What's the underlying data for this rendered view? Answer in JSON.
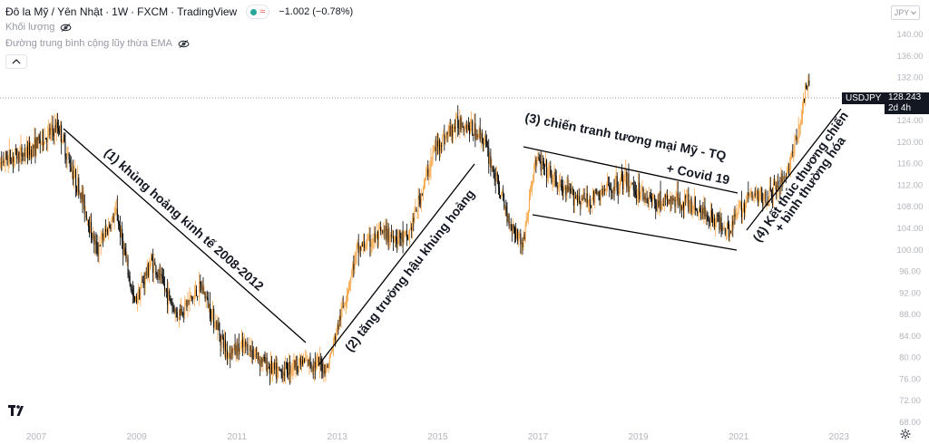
{
  "header": {
    "symbol": "Đô la Mỹ / Yên Nhật",
    "interval": "1W",
    "exchange": "FXCM",
    "source": "TradingView",
    "change": "−1.002 (−0.78%)"
  },
  "indicators": [
    "Khối lượng",
    "Đường trung bình cộng lũy thừa EMA"
  ],
  "currency": "JPY",
  "ticker": "USDJPY",
  "price": "128.243",
  "countdown": "2d 4h",
  "colors": {
    "up": "#f7a546",
    "down": "#000000",
    "text": "#131722",
    "axis": "#b2b5be"
  },
  "chart_data": {
    "type": "candlestick",
    "x_ticks": [
      "2007",
      "2009",
      "2011",
      "2013",
      "2015",
      "2017",
      "2019",
      "2021",
      "2023"
    ],
    "y_ticks": [
      68,
      72,
      76,
      80,
      84,
      88,
      92,
      96,
      100,
      104,
      108,
      112,
      116,
      120,
      124,
      128,
      132,
      136,
      140
    ],
    "y_range": [
      66,
      144
    ],
    "series_path": [
      {
        "x": 2006.0,
        "y": 114
      },
      {
        "x": 2006.4,
        "y": 117
      },
      {
        "x": 2006.8,
        "y": 118
      },
      {
        "x": 2007.45,
        "y": 123
      },
      {
        "x": 2007.6,
        "y": 118
      },
      {
        "x": 2007.9,
        "y": 110
      },
      {
        "x": 2008.2,
        "y": 100
      },
      {
        "x": 2008.6,
        "y": 107
      },
      {
        "x": 2008.95,
        "y": 90
      },
      {
        "x": 2009.3,
        "y": 98
      },
      {
        "x": 2009.8,
        "y": 88
      },
      {
        "x": 2010.3,
        "y": 93
      },
      {
        "x": 2010.8,
        "y": 81
      },
      {
        "x": 2011.2,
        "y": 82
      },
      {
        "x": 2011.8,
        "y": 77
      },
      {
        "x": 2012.2,
        "y": 79
      },
      {
        "x": 2012.5,
        "y": 79
      },
      {
        "x": 2012.8,
        "y": 78
      },
      {
        "x": 2013.4,
        "y": 100
      },
      {
        "x": 2013.9,
        "y": 103
      },
      {
        "x": 2014.4,
        "y": 102
      },
      {
        "x": 2014.95,
        "y": 119
      },
      {
        "x": 2015.45,
        "y": 124
      },
      {
        "x": 2015.9,
        "y": 121
      },
      {
        "x": 2016.4,
        "y": 106
      },
      {
        "x": 2016.7,
        "y": 101
      },
      {
        "x": 2016.95,
        "y": 117
      },
      {
        "x": 2017.5,
        "y": 111
      },
      {
        "x": 2018.0,
        "y": 109
      },
      {
        "x": 2018.7,
        "y": 113
      },
      {
        "x": 2019.3,
        "y": 109
      },
      {
        "x": 2019.9,
        "y": 109
      },
      {
        "x": 2020.3,
        "y": 107
      },
      {
        "x": 2020.8,
        "y": 104
      },
      {
        "x": 2021.2,
        "y": 110
      },
      {
        "x": 2021.6,
        "y": 110
      },
      {
        "x": 2021.95,
        "y": 114
      },
      {
        "x": 2022.2,
        "y": 122
      },
      {
        "x": 2022.35,
        "y": 131
      },
      {
        "x": 2022.42,
        "y": 128.2
      }
    ],
    "annotations": [
      {
        "label": "(1) khủng hoảng kinh tế 2008-2012"
      },
      {
        "label": "(2) tăng trưởng hậu khủng hoảng"
      },
      {
        "label": "(3) chiến tranh tương mại Mỹ - TQ"
      },
      {
        "label": "+ Covid 19"
      },
      {
        "label": "(4) Kết thúc thương chiến"
      },
      {
        "label": "+ bình thường hóa"
      }
    ]
  }
}
